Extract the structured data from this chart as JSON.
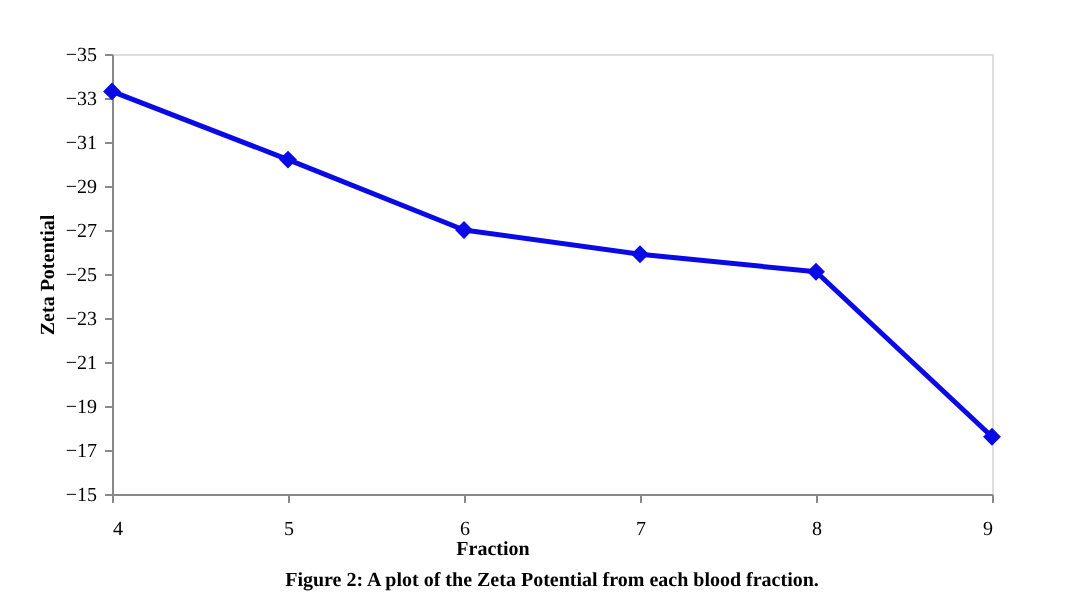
{
  "chart_data": {
    "type": "line",
    "xlabel": "Fraction",
    "ylabel": "Zeta Potential",
    "annotations": [
      "Figure 2: A plot of the Zeta Potential from each blood fraction."
    ],
    "x": [
      4,
      5,
      6,
      7,
      8,
      9
    ],
    "series": [
      {
        "color": "#0a0ae6",
        "values": [
          -33.3,
          -30.2,
          -27.0,
          -25.9,
          -25.1,
          -17.6
        ]
      }
    ],
    "xlim": [
      4,
      9
    ],
    "xticks": [
      4,
      5,
      6,
      7,
      8,
      9
    ],
    "ylim": [
      -15,
      -35
    ],
    "yticks": [
      -15,
      -17,
      -19,
      -21,
      -23,
      -25,
      -27,
      -29,
      -31,
      -33,
      -35
    ],
    "grid": false,
    "marker": "diamond",
    "line_style": "solid"
  }
}
